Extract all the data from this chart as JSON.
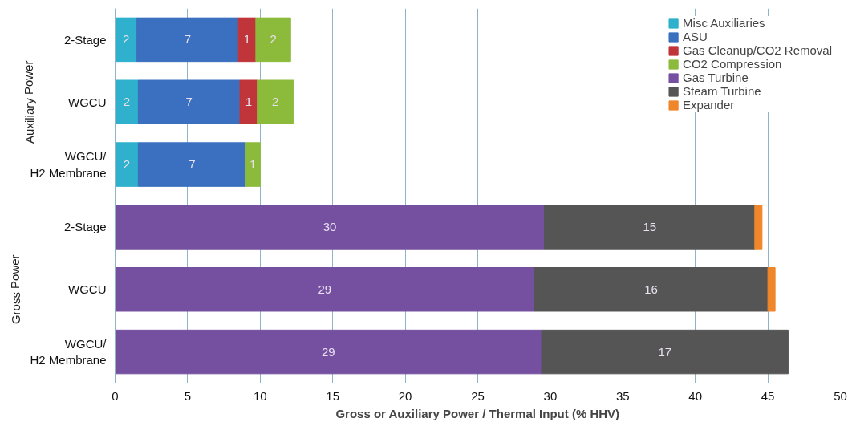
{
  "chart_data": {
    "type": "bar",
    "orientation": "horizontal",
    "stacked": true,
    "xlabel": "Gross or Auxiliary Power / Thermal Input (% HHV)",
    "categories": [
      "2-Stage",
      "WGCU",
      "WGCU/\nH2 Membrane",
      "2-Stage",
      "WGCU",
      "WGCU/\nH2 Membrane"
    ],
    "series": [
      {
        "name": "Misc Auxiliaries",
        "color": "#2fb0cc",
        "values": [
          1.5,
          1.6,
          1.6,
          null,
          null,
          null
        ],
        "value_labels": [
          "2",
          "2",
          "2",
          null,
          null,
          null
        ]
      },
      {
        "name": "ASU",
        "color": "#3a70bf",
        "values": [
          7.0,
          7.0,
          7.4,
          null,
          null,
          null
        ],
        "value_labels": [
          "7",
          "7",
          "7",
          null,
          null,
          null
        ]
      },
      {
        "name": "Gas Cleanup/CO2 Removal",
        "color": "#c0353a",
        "values": [
          1.2,
          1.2,
          null,
          null,
          null,
          null
        ],
        "value_labels": [
          "1",
          "1",
          null,
          null,
          null,
          null
        ]
      },
      {
        "name": "CO2 Compression",
        "color": "#8cbb3c",
        "values": [
          2.4,
          2.5,
          1.0,
          null,
          null,
          null
        ],
        "value_labels": [
          "2",
          "2",
          "1",
          null,
          null,
          null
        ]
      },
      {
        "name": "Gas Turbine",
        "color": "#7550a0",
        "values": [
          null,
          null,
          null,
          29.6,
          28.9,
          29.4
        ],
        "value_labels": [
          null,
          null,
          null,
          "30",
          "29",
          "29"
        ]
      },
      {
        "name": "Steam Turbine",
        "color": "#555555",
        "values": [
          null,
          null,
          null,
          14.5,
          16.1,
          17.0
        ],
        "value_labels": [
          null,
          null,
          null,
          "15",
          "16",
          "17"
        ]
      },
      {
        "name": "Expander",
        "color": "#f0862a",
        "values": [
          null,
          null,
          null,
          0.5,
          0.5,
          null
        ]
      }
    ],
    "annotations": [
      "Auxiliary Power",
      "Gross Power"
    ],
    "xlim": [
      0,
      50
    ],
    "xticks": [
      0,
      5,
      10,
      15,
      20,
      25,
      30,
      35,
      40,
      45,
      50
    ],
    "grid": "x",
    "legend": "top right"
  }
}
